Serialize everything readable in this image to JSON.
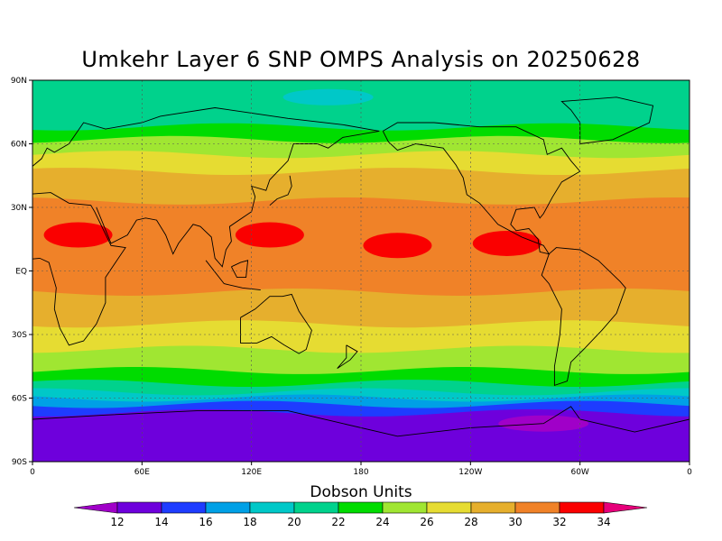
{
  "title": "Umkehr Layer 6 SNP OMPS Analysis on 20250628",
  "colorbar": {
    "title": "Dobson Units",
    "labels": [
      "12",
      "14",
      "16",
      "18",
      "20",
      "22",
      "24",
      "26",
      "28",
      "30",
      "32",
      "34"
    ],
    "colors": [
      "#a000c8",
      "#6e00dc",
      "#1e3cff",
      "#00a0e6",
      "#00c8c8",
      "#00d28c",
      "#00dc00",
      "#a0e632",
      "#e6dc32",
      "#e6af2d",
      "#f08228",
      "#fa0000",
      "#e6007a"
    ]
  },
  "chart_data": {
    "type": "heatmap",
    "title": "Umkehr Layer 6 SNP OMPS Analysis on 20250628",
    "units": "Dobson Units",
    "x_ticks": [
      "0",
      "60E",
      "120E",
      "180",
      "120W",
      "60W",
      "0"
    ],
    "y_ticks": [
      "90N",
      "60N",
      "30N",
      "EQ",
      "30S",
      "60S",
      "90S"
    ],
    "lon_range": [
      0,
      360
    ],
    "lat_range": [
      -90,
      90
    ],
    "grid": true,
    "contour_levels": [
      12,
      14,
      16,
      18,
      20,
      22,
      24,
      26,
      28,
      30,
      32,
      34
    ],
    "zonal_bands": [
      {
        "lat_from": 90,
        "lat_to": 68,
        "value": 20
      },
      {
        "lat_from": 68,
        "lat_to": 62,
        "value": 22
      },
      {
        "lat_from": 62,
        "lat_to": 55,
        "value": 24
      },
      {
        "lat_from": 55,
        "lat_to": 47,
        "value": 26
      },
      {
        "lat_from": 47,
        "lat_to": 33,
        "value": 28
      },
      {
        "lat_from": 33,
        "lat_to": -10,
        "value": 30
      },
      {
        "lat_from": -10,
        "lat_to": -25,
        "value": 28
      },
      {
        "lat_from": -25,
        "lat_to": -37,
        "value": 26
      },
      {
        "lat_from": -37,
        "lat_to": -47,
        "value": 24
      },
      {
        "lat_from": -47,
        "lat_to": -53,
        "value": 22
      },
      {
        "lat_from": -53,
        "lat_to": -57,
        "value": 20
      },
      {
        "lat_from": -57,
        "lat_to": -60,
        "value": 18
      },
      {
        "lat_from": -60,
        "lat_to": -63,
        "value": 16
      },
      {
        "lat_from": -63,
        "lat_to": -67,
        "value": 14
      },
      {
        "lat_from": -67,
        "lat_to": -90,
        "value": 12
      }
    ],
    "local_features": [
      {
        "lon": 130,
        "lat": 17,
        "value": 32
      },
      {
        "lon": 200,
        "lat": 12,
        "value": 32
      },
      {
        "lon": 260,
        "lat": 13,
        "value": 32
      },
      {
        "lon": 25,
        "lat": 17,
        "value": 32
      },
      {
        "lon": 162,
        "lat": 82,
        "value": 18
      },
      {
        "lon": 280,
        "lat": -72,
        "value": 10
      }
    ]
  }
}
